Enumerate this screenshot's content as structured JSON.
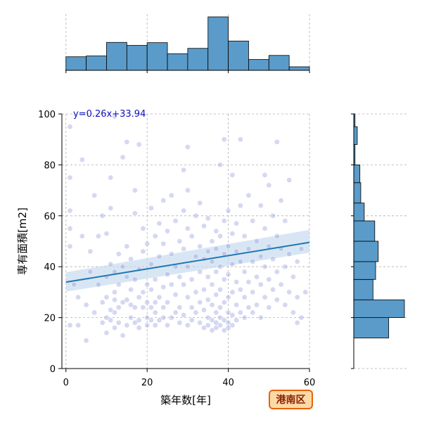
{
  "chart_data": {
    "type": "scatter",
    "xlabel": "築年数[年]",
    "ylabel": "専有面積[m2]",
    "xlim": [
      -1,
      60
    ],
    "ylim": [
      0,
      100
    ],
    "xticks": [
      0,
      20,
      40,
      60
    ],
    "yticks": [
      0,
      20,
      40,
      60,
      80,
      100
    ],
    "grid": true,
    "regression": {
      "equation": "y=0.26x+33.94",
      "slope": 0.26,
      "intercept": 33.94,
      "ci_start": [
        30.2,
        37.8
      ],
      "ci_end": [
        45.5,
        54.5
      ]
    },
    "badge": "港南区",
    "colors": {
      "points": "#8890d8",
      "line": "#1f77b4",
      "band": "#c7dcef",
      "hist": "#5a9bc9",
      "badge_fill": "#fcd9a6",
      "badge_border": "#e8620c"
    },
    "x_hist": {
      "bin_edges": [
        0,
        5,
        10,
        15,
        20,
        25,
        30,
        35,
        40,
        45,
        50,
        55,
        60
      ],
      "counts": [
        5,
        5.3,
        10.3,
        9.2,
        10.2,
        6.1,
        8.1,
        19.7,
        10.8,
        4,
        5.5,
        1.3
      ]
    },
    "y_hist": {
      "bin_edges": [
        12,
        20,
        27,
        35,
        42,
        50,
        58,
        65,
        73,
        80,
        88,
        95,
        100
      ],
      "counts": [
        20,
        29,
        11,
        12.5,
        14,
        12,
        6,
        4,
        3.5,
        0.7,
        2,
        0.7
      ]
    },
    "points": [
      [
        1,
        17
      ],
      [
        1,
        48
      ],
      [
        1,
        55
      ],
      [
        1,
        62
      ],
      [
        1,
        75
      ],
      [
        1,
        95
      ],
      [
        2,
        33
      ],
      [
        3,
        28
      ],
      [
        3,
        17
      ],
      [
        4,
        52
      ],
      [
        4,
        82
      ],
      [
        5,
        25
      ],
      [
        5,
        11
      ],
      [
        6,
        38
      ],
      [
        6,
        46
      ],
      [
        7,
        22
      ],
      [
        7,
        68
      ],
      [
        8,
        33
      ],
      [
        8,
        52
      ],
      [
        9,
        18
      ],
      [
        9,
        26
      ],
      [
        9,
        60
      ],
      [
        10,
        14
      ],
      [
        10,
        20
      ],
      [
        10,
        28
      ],
      [
        10,
        36
      ],
      [
        10,
        53
      ],
      [
        11,
        19
      ],
      [
        11,
        23
      ],
      [
        11,
        41
      ],
      [
        11,
        63
      ],
      [
        11,
        75
      ],
      [
        12,
        16
      ],
      [
        12,
        22
      ],
      [
        12,
        27
      ],
      [
        12,
        30
      ],
      [
        12,
        38
      ],
      [
        12,
        99
      ],
      [
        13,
        18
      ],
      [
        13,
        24
      ],
      [
        13,
        33
      ],
      [
        13,
        45
      ],
      [
        14,
        13
      ],
      [
        14,
        26
      ],
      [
        14,
        40
      ],
      [
        14,
        83
      ],
      [
        15,
        17
      ],
      [
        15,
        27
      ],
      [
        15,
        36
      ],
      [
        15,
        48
      ],
      [
        15,
        89
      ],
      [
        16,
        20
      ],
      [
        16,
        25
      ],
      [
        16,
        31
      ],
      [
        16,
        43
      ],
      [
        17,
        18
      ],
      [
        17,
        24
      ],
      [
        17,
        35
      ],
      [
        17,
        61
      ],
      [
        17,
        70
      ],
      [
        18,
        16
      ],
      [
        18,
        19
      ],
      [
        18,
        28
      ],
      [
        18,
        39
      ],
      [
        18,
        88
      ],
      [
        19,
        24
      ],
      [
        19,
        30
      ],
      [
        19,
        46
      ],
      [
        19,
        55
      ],
      [
        20,
        17
      ],
      [
        20,
        20
      ],
      [
        20,
        26
      ],
      [
        20,
        33
      ],
      [
        20,
        49
      ],
      [
        21,
        19
      ],
      [
        21,
        24
      ],
      [
        21,
        31
      ],
      [
        21,
        41
      ],
      [
        21,
        63
      ],
      [
        22,
        17
      ],
      [
        22,
        22
      ],
      [
        22,
        26
      ],
      [
        22,
        35
      ],
      [
        22,
        52
      ],
      [
        23,
        19
      ],
      [
        23,
        28
      ],
      [
        23,
        44
      ],
      [
        23,
        57
      ],
      [
        24,
        20
      ],
      [
        24,
        24
      ],
      [
        24,
        32
      ],
      [
        24,
        49
      ],
      [
        24,
        66
      ],
      [
        25,
        17
      ],
      [
        25,
        26
      ],
      [
        25,
        37
      ],
      [
        25,
        54
      ],
      [
        26,
        20
      ],
      [
        26,
        33
      ],
      [
        26,
        45
      ],
      [
        26,
        68
      ],
      [
        27,
        22
      ],
      [
        27,
        29
      ],
      [
        27,
        40
      ],
      [
        27,
        58
      ],
      [
        28,
        18
      ],
      [
        28,
        24
      ],
      [
        28,
        36
      ],
      [
        28,
        50
      ],
      [
        29,
        21
      ],
      [
        29,
        33
      ],
      [
        29,
        47
      ],
      [
        29,
        62
      ],
      [
        29,
        78
      ],
      [
        30,
        17
      ],
      [
        30,
        28
      ],
      [
        30,
        40
      ],
      [
        30,
        55
      ],
      [
        30,
        70
      ],
      [
        30,
        87
      ],
      [
        31,
        19
      ],
      [
        31,
        24
      ],
      [
        31,
        35
      ],
      [
        31,
        52
      ],
      [
        32,
        22
      ],
      [
        32,
        30
      ],
      [
        32,
        44
      ],
      [
        32,
        60
      ],
      [
        33,
        18
      ],
      [
        33,
        26
      ],
      [
        33,
        38
      ],
      [
        33,
        48
      ],
      [
        33,
        65
      ],
      [
        34,
        16
      ],
      [
        34,
        23
      ],
      [
        34,
        31
      ],
      [
        34,
        43
      ],
      [
        34,
        56
      ],
      [
        35,
        17
      ],
      [
        35,
        20
      ],
      [
        35,
        27
      ],
      [
        35,
        36
      ],
      [
        35,
        46
      ],
      [
        35,
        59
      ],
      [
        36,
        15
      ],
      [
        36,
        19
      ],
      [
        36,
        25
      ],
      [
        36,
        33
      ],
      [
        36,
        42
      ],
      [
        36,
        50
      ],
      [
        37,
        16
      ],
      [
        37,
        18
      ],
      [
        37,
        22
      ],
      [
        37,
        29
      ],
      [
        37,
        38
      ],
      [
        37,
        47
      ],
      [
        37,
        54
      ],
      [
        38,
        17
      ],
      [
        38,
        20
      ],
      [
        38,
        24
      ],
      [
        38,
        31
      ],
      [
        38,
        40
      ],
      [
        38,
        52
      ],
      [
        38,
        80
      ],
      [
        39,
        15
      ],
      [
        39,
        19
      ],
      [
        39,
        26
      ],
      [
        39,
        35
      ],
      [
        39,
        45
      ],
      [
        39,
        58
      ],
      [
        39,
        90
      ],
      [
        40,
        16
      ],
      [
        40,
        18
      ],
      [
        40,
        22
      ],
      [
        40,
        28
      ],
      [
        40,
        37
      ],
      [
        40,
        48
      ],
      [
        40,
        62
      ],
      [
        41,
        17
      ],
      [
        41,
        21
      ],
      [
        41,
        30
      ],
      [
        41,
        41
      ],
      [
        41,
        53
      ],
      [
        41,
        76
      ],
      [
        42,
        19
      ],
      [
        42,
        25
      ],
      [
        42,
        34
      ],
      [
        42,
        46
      ],
      [
        42,
        57
      ],
      [
        43,
        22
      ],
      [
        43,
        31
      ],
      [
        43,
        42
      ],
      [
        43,
        64
      ],
      [
        43,
        90
      ],
      [
        44,
        20
      ],
      [
        44,
        28
      ],
      [
        44,
        38
      ],
      [
        44,
        52
      ],
      [
        45,
        24
      ],
      [
        45,
        34
      ],
      [
        45,
        47
      ],
      [
        45,
        68
      ],
      [
        46,
        22
      ],
      [
        46,
        30
      ],
      [
        46,
        42
      ],
      [
        46,
        58
      ],
      [
        47,
        25
      ],
      [
        47,
        36
      ],
      [
        47,
        50
      ],
      [
        48,
        20
      ],
      [
        48,
        33
      ],
      [
        48,
        44
      ],
      [
        48,
        64
      ],
      [
        49,
        28
      ],
      [
        49,
        40
      ],
      [
        49,
        55
      ],
      [
        49,
        76
      ],
      [
        50,
        24
      ],
      [
        50,
        35
      ],
      [
        50,
        48
      ],
      [
        50,
        72
      ],
      [
        51,
        31
      ],
      [
        51,
        43
      ],
      [
        51,
        60
      ],
      [
        52,
        27
      ],
      [
        52,
        38
      ],
      [
        52,
        52
      ],
      [
        52,
        89
      ],
      [
        53,
        33
      ],
      [
        53,
        47
      ],
      [
        53,
        66
      ],
      [
        54,
        25
      ],
      [
        54,
        40
      ],
      [
        54,
        58
      ],
      [
        55,
        30
      ],
      [
        55,
        45
      ],
      [
        55,
        74
      ],
      [
        56,
        22
      ],
      [
        56,
        36
      ],
      [
        57,
        18
      ],
      [
        57,
        28
      ],
      [
        57,
        42
      ],
      [
        58,
        20
      ],
      [
        58,
        47
      ],
      [
        59,
        30
      ]
    ]
  }
}
